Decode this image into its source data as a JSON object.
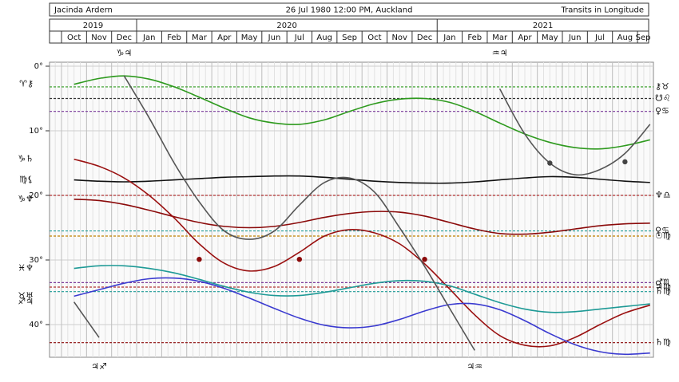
{
  "header": {
    "name": "Jacinda Ardern",
    "birth": "26 Jul 1980 12:00 PM, Auckland",
    "mode": "Transits in Longitude"
  },
  "chart_data": {
    "type": "line",
    "years": [
      {
        "label": "2019",
        "months": 3
      },
      {
        "label": "2020",
        "months": 12
      },
      {
        "label": "2021",
        "months": 9
      }
    ],
    "categories": [
      "Oct",
      "Nov",
      "Dec",
      "Jan",
      "Feb",
      "Mar",
      "Apr",
      "May",
      "Jun",
      "Jul",
      "Aug",
      "Sep",
      "Oct",
      "Nov",
      "Dec",
      "Jan",
      "Feb",
      "Mar",
      "Apr",
      "May",
      "Jun",
      "Jul",
      "Aug",
      "Sep"
    ],
    "ylim": [
      0,
      45
    ],
    "yticks": [
      {
        "value": 0,
        "label": "0°"
      },
      {
        "value": 10,
        "label": "10°"
      },
      {
        "value": 20,
        "label": "20°"
      },
      {
        "value": 30,
        "label": "30°"
      },
      {
        "value": 40,
        "label": "40°"
      }
    ],
    "series": [
      {
        "color": "#2e9a1e",
        "start_label": "♈⚷",
        "values": [
          2.8,
          1.9,
          1.5,
          2,
          3.2,
          4.8,
          6.5,
          8,
          8.8,
          9,
          8.3,
          7,
          5.8,
          5.1,
          5,
          5.6,
          7,
          8.8,
          10.5,
          11.8,
          12.6,
          12.8,
          12.3,
          11.4
        ]
      },
      {
        "color": "#111111",
        "start_label": "♍⚸",
        "values": [
          17.6,
          17.8,
          17.9,
          17.8,
          17.6,
          17.4,
          17.2,
          17.1,
          17,
          17,
          17.2,
          17.5,
          17.8,
          18,
          18.1,
          18.1,
          17.9,
          17.6,
          17.3,
          17.1,
          17.2,
          17.5,
          17.8,
          18
        ]
      },
      {
        "color": "#8b0a0a",
        "start_label": "♑♆",
        "values": [
          20.6,
          20.8,
          21.4,
          22.3,
          23.3,
          24.2,
          24.8,
          25,
          24.8,
          24.2,
          23.4,
          22.8,
          22.5,
          22.6,
          23.2,
          24.2,
          25.2,
          25.9,
          26,
          25.7,
          25.2,
          24.7,
          24.4,
          24.3
        ]
      },
      {
        "color": "#9a1010",
        "start_label": "♑♄",
        "values": [
          14.4,
          15.5,
          17.3,
          20,
          23.5,
          27.5,
          30.5,
          31.7,
          31,
          28.8,
          26.3,
          25.3,
          25.8,
          27.5,
          30.6,
          34.5,
          38.5,
          41.7,
          43.2,
          43.3,
          42,
          40,
          38.2,
          37
        ]
      },
      {
        "color": "#1e9a96",
        "start_label": "♓♆",
        "values": [
          31.3,
          30.9,
          30.9,
          31.3,
          32,
          33,
          34.1,
          35,
          35.5,
          35.5,
          35,
          34.3,
          33.6,
          33.2,
          33.3,
          34,
          35.3,
          36.6,
          37.6,
          38.1,
          38,
          37.6,
          37.2,
          36.8
        ]
      },
      {
        "color": "#3a3ad0",
        "start_label": "♉♅",
        "values": [
          35.6,
          34.6,
          33.6,
          32.9,
          32.8,
          33.3,
          34.4,
          35.9,
          37.5,
          39,
          40.1,
          40.5,
          40.2,
          39.2,
          37.9,
          36.9,
          36.8,
          37.7,
          39.4,
          41.4,
          43.1,
          44.2,
          44.6,
          44.4
        ]
      },
      {
        "color": "#555555",
        "start_label": "♐♃",
        "end_label": "♃♐",
        "values": [
          36.5,
          42,
          null,
          null,
          null,
          null,
          null,
          null,
          null,
          null,
          null,
          null,
          null,
          null,
          null,
          null,
          null,
          null,
          null,
          null,
          null,
          null,
          null,
          null
        ]
      },
      {
        "color": "#555555",
        "start_label": "♑♃",
        "end_label": "♃♒",
        "values": [
          null,
          null,
          1.5,
          8,
          15,
          21,
          25.5,
          26.8,
          25.5,
          21.5,
          18,
          17.3,
          19.5,
          25,
          31,
          37.5,
          44,
          null,
          null,
          null,
          null,
          null,
          null,
          null
        ]
      },
      {
        "color": "#555555",
        "start_label": "♒♃",
        "values": [
          null,
          null,
          null,
          null,
          null,
          null,
          null,
          null,
          null,
          null,
          null,
          null,
          null,
          null,
          null,
          null,
          null,
          3.5,
          10.5,
          15,
          16.8,
          16,
          13.5,
          9
        ]
      }
    ],
    "points": [
      {
        "color": "#8b0a0a",
        "values": [
          null,
          null,
          null,
          null,
          null,
          29.9,
          null,
          null,
          null,
          29.9,
          null,
          null,
          null,
          null,
          29.9,
          null,
          null,
          null,
          null,
          null,
          null,
          null,
          null,
          null
        ]
      },
      {
        "color": "#444444",
        "values": [
          null,
          null,
          null,
          null,
          null,
          null,
          null,
          null,
          null,
          null,
          null,
          null,
          null,
          null,
          null,
          null,
          null,
          null,
          null,
          15,
          null,
          null,
          14.8,
          null
        ]
      }
    ],
    "natal": [
      {
        "value": 3.2,
        "label": "⚷♉",
        "color": "#2e9a1e"
      },
      {
        "value": 5,
        "label": "☋♌",
        "color": "#333333"
      },
      {
        "value": 7,
        "label": "♀♋",
        "color": "#7a3a9a"
      },
      {
        "value": 20,
        "label": "♆♎",
        "color": "#b03030"
      },
      {
        "value": 25.5,
        "label": "♀♋",
        "color": "#1e9a96"
      },
      {
        "value": 26.3,
        "label": "☉♍",
        "color": "#c08000"
      },
      {
        "value": 33.5,
        "label": "♂♏",
        "color": "#7a3a9a"
      },
      {
        "value": 34.2,
        "label": "♃♍",
        "color": "#b03030"
      },
      {
        "value": 34.9,
        "label": "♄♍",
        "color": "#1e9a96"
      },
      {
        "value": 42.8,
        "label": "♄♍",
        "color": "#8b0a0a"
      }
    ]
  }
}
